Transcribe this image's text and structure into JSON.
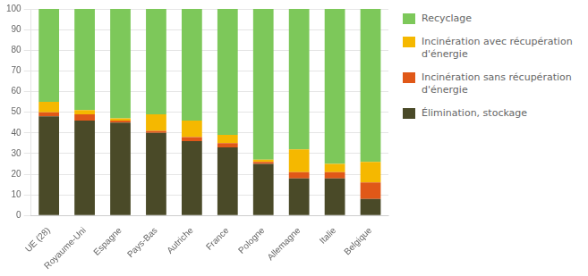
{
  "chart_data": {
    "type": "bar",
    "stacked": true,
    "grid": true,
    "legend": "right",
    "categories": [
      "UE (28)",
      "Royaume-Uni",
      "Espagne",
      "Pays-Bas",
      "Autriche",
      "France",
      "Pologne",
      "Allemagne",
      "Italie",
      "Belgique"
    ],
    "series": [
      {
        "name": "Élimination, stockage",
        "color": "#4a4a28",
        "values": [
          48,
          46,
          45,
          40,
          36,
          33,
          25,
          18,
          18,
          8
        ]
      },
      {
        "name": "Incinération sans récupération\nd'énergie",
        "color": "#e05818",
        "values": [
          2,
          3,
          1,
          1,
          2,
          2,
          1,
          3,
          3,
          8
        ]
      },
      {
        "name": "Incinération avec récupération\nd'énergie",
        "color": "#f5b800",
        "values": [
          5,
          2,
          1,
          8,
          8,
          4,
          1,
          11,
          4,
          10
        ]
      },
      {
        "name": "Recyclage",
        "color": "#7dc85a",
        "values": [
          45,
          49,
          53,
          51,
          54,
          61,
          73,
          68,
          75,
          74
        ]
      }
    ],
    "ylim": [
      0,
      100
    ],
    "yticks": [
      0,
      10,
      20,
      30,
      40,
      50,
      60,
      70,
      80,
      90,
      100
    ]
  }
}
